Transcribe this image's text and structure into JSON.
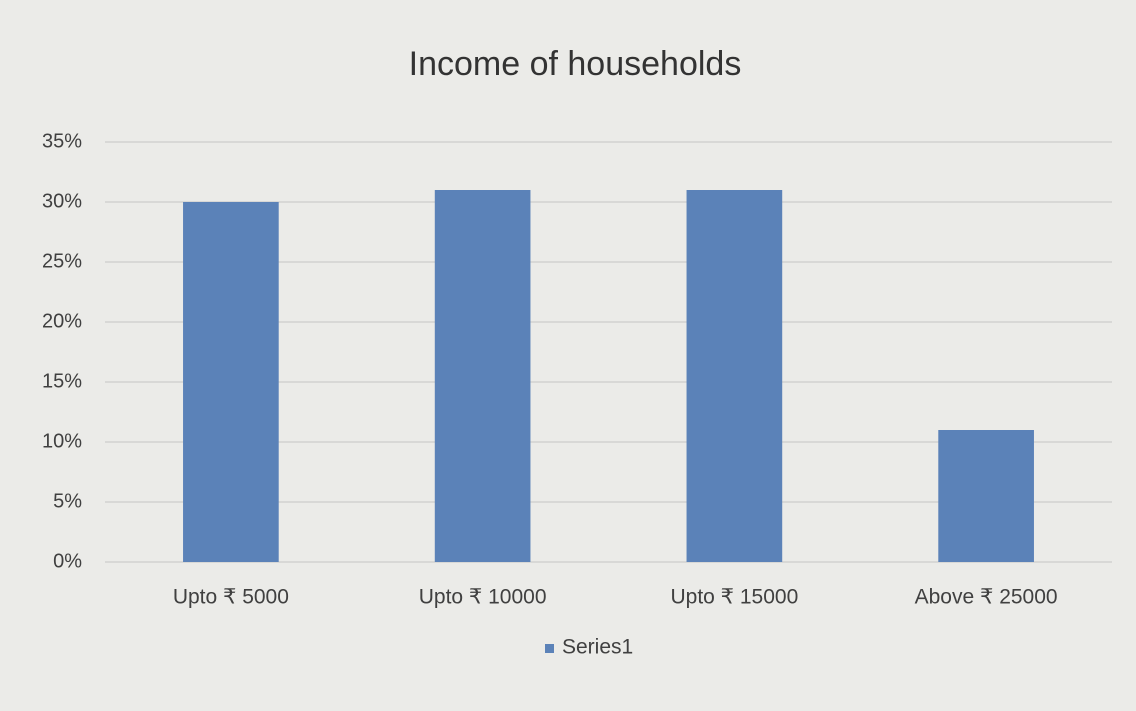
{
  "chart_data": {
    "type": "bar",
    "title": "Income of households",
    "categories": [
      "Upto ₹ 5000",
      "Upto ₹ 10000",
      "Upto ₹ 15000",
      "Above ₹ 25000"
    ],
    "series": [
      {
        "name": "Series1",
        "color": "#5b82b8",
        "values": [
          30,
          31,
          31,
          11
        ]
      }
    ],
    "ylim": [
      0,
      35
    ],
    "yticks": [
      {
        "value": 0,
        "label": "0%"
      },
      {
        "value": 5,
        "label": "5%"
      },
      {
        "value": 10,
        "label": "10%"
      },
      {
        "value": 15,
        "label": "15%"
      },
      {
        "value": 20,
        "label": "20%"
      },
      {
        "value": 25,
        "label": "25%"
      },
      {
        "value": 30,
        "label": "30%"
      },
      {
        "value": 35,
        "label": "35%"
      }
    ],
    "grid": true,
    "legend": "bottom"
  }
}
